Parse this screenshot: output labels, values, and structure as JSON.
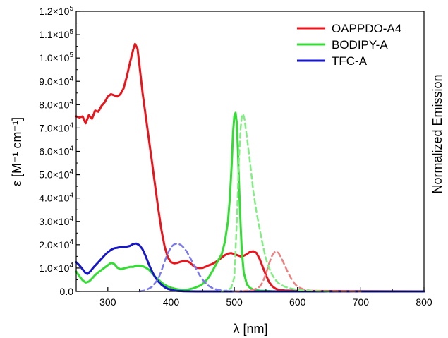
{
  "chart_data": {
    "type": "line",
    "xlabel": "λ [nm]",
    "ylabel": "ε [M⁻¹ cm⁻¹]",
    "y2label": "Normalized Emission",
    "xlim": [
      250,
      800
    ],
    "ylim": [
      0,
      120000
    ],
    "x_ticks": [
      {
        "value": 300,
        "label": "300"
      },
      {
        "value": 400,
        "label": "400"
      },
      {
        "value": 500,
        "label": "500"
      },
      {
        "value": 600,
        "label": "600"
      },
      {
        "value": 700,
        "label": "700"
      },
      {
        "value": 800,
        "label": "800"
      }
    ],
    "y_ticks": [
      {
        "value": 0,
        "mant": "0.0",
        "exp": ""
      },
      {
        "value": 10000,
        "mant": "1.0×10",
        "exp": "4"
      },
      {
        "value": 20000,
        "mant": "2.0×10",
        "exp": "4"
      },
      {
        "value": 30000,
        "mant": "3.0×10",
        "exp": "4"
      },
      {
        "value": 40000,
        "mant": "4.0×10",
        "exp": "4"
      },
      {
        "value": 50000,
        "mant": "5.0×10",
        "exp": "4"
      },
      {
        "value": 60000,
        "mant": "6.0×10",
        "exp": "4"
      },
      {
        "value": 70000,
        "mant": "7.0×10",
        "exp": "4"
      },
      {
        "value": 80000,
        "mant": "8.0×10",
        "exp": "4"
      },
      {
        "value": 90000,
        "mant": "9.0×10",
        "exp": "4"
      },
      {
        "value": 100000,
        "mant": "1.0×10",
        "exp": "5"
      },
      {
        "value": 110000,
        "mant": "1.1×10",
        "exp": "5"
      },
      {
        "value": 120000,
        "mant": "1.2×10",
        "exp": "5"
      }
    ],
    "legend_position": "top-right",
    "series": [
      {
        "name": "OAPPDO-A4",
        "color": "#e8161c",
        "kind": "absorption",
        "points": [
          [
            250,
            75000
          ],
          [
            255,
            74500
          ],
          [
            260,
            75000
          ],
          [
            265,
            72000
          ],
          [
            270,
            75500
          ],
          [
            275,
            74000
          ],
          [
            280,
            77500
          ],
          [
            285,
            77000
          ],
          [
            290,
            79500
          ],
          [
            295,
            81000
          ],
          [
            300,
            83500
          ],
          [
            305,
            84500
          ],
          [
            310,
            84000
          ],
          [
            315,
            83500
          ],
          [
            320,
            84500
          ],
          [
            325,
            87000
          ],
          [
            330,
            92000
          ],
          [
            335,
            98000
          ],
          [
            340,
            103500
          ],
          [
            343,
            106000
          ],
          [
            347,
            104000
          ],
          [
            350,
            97000
          ],
          [
            355,
            85000
          ],
          [
            360,
            75000
          ],
          [
            365,
            65000
          ],
          [
            370,
            55000
          ],
          [
            375,
            45000
          ],
          [
            380,
            35000
          ],
          [
            385,
            26000
          ],
          [
            390,
            19000
          ],
          [
            395,
            14500
          ],
          [
            400,
            12500
          ],
          [
            405,
            12000
          ],
          [
            410,
            12200
          ],
          [
            415,
            12700
          ],
          [
            420,
            13000
          ],
          [
            425,
            13000
          ],
          [
            430,
            12300
          ],
          [
            435,
            11000
          ],
          [
            440,
            10200
          ],
          [
            445,
            10000
          ],
          [
            450,
            10100
          ],
          [
            455,
            10600
          ],
          [
            460,
            11200
          ],
          [
            465,
            11700
          ],
          [
            470,
            12500
          ],
          [
            475,
            13400
          ],
          [
            480,
            14500
          ],
          [
            485,
            15500
          ],
          [
            490,
            16200
          ],
          [
            495,
            16400
          ],
          [
            500,
            16000
          ],
          [
            505,
            15500
          ],
          [
            510,
            15000
          ],
          [
            515,
            15300
          ],
          [
            520,
            16000
          ],
          [
            525,
            17000
          ],
          [
            530,
            17200
          ],
          [
            535,
            16500
          ],
          [
            540,
            14000
          ],
          [
            545,
            10500
          ],
          [
            550,
            7000
          ],
          [
            555,
            4000
          ],
          [
            560,
            2200
          ],
          [
            565,
            1200
          ],
          [
            570,
            700
          ],
          [
            580,
            400
          ],
          [
            600,
            200
          ],
          [
            700,
            100
          ],
          [
            800,
            0
          ]
        ]
      },
      {
        "name": "BODIPY-A",
        "color": "#33dd33",
        "kind": "absorption",
        "points": [
          [
            250,
            8500
          ],
          [
            255,
            6500
          ],
          [
            260,
            4800
          ],
          [
            265,
            3800
          ],
          [
            270,
            4200
          ],
          [
            275,
            5500
          ],
          [
            280,
            7000
          ],
          [
            285,
            8200
          ],
          [
            290,
            9200
          ],
          [
            295,
            10200
          ],
          [
            300,
            11200
          ],
          [
            305,
            12200
          ],
          [
            310,
            11800
          ],
          [
            315,
            10200
          ],
          [
            320,
            9500
          ],
          [
            325,
            9800
          ],
          [
            330,
            10200
          ],
          [
            335,
            10500
          ],
          [
            340,
            10500
          ],
          [
            345,
            11000
          ],
          [
            350,
            11000
          ],
          [
            355,
            10800
          ],
          [
            360,
            10200
          ],
          [
            365,
            9300
          ],
          [
            370,
            7800
          ],
          [
            375,
            6300
          ],
          [
            380,
            5000
          ],
          [
            385,
            3800
          ],
          [
            390,
            2800
          ],
          [
            395,
            2100
          ],
          [
            400,
            1600
          ],
          [
            405,
            1200
          ],
          [
            410,
            900
          ],
          [
            415,
            700
          ],
          [
            420,
            600
          ],
          [
            425,
            700
          ],
          [
            430,
            1000
          ],
          [
            435,
            1300
          ],
          [
            440,
            1800
          ],
          [
            445,
            2400
          ],
          [
            450,
            3200
          ],
          [
            455,
            4500
          ],
          [
            460,
            6200
          ],
          [
            465,
            8500
          ],
          [
            470,
            11000
          ],
          [
            475,
            13500
          ],
          [
            480,
            16000
          ],
          [
            485,
            21000
          ],
          [
            490,
            30000
          ],
          [
            493,
            40000
          ],
          [
            496,
            55000
          ],
          [
            498,
            68000
          ],
          [
            500,
            75000
          ],
          [
            502,
            76500
          ],
          [
            504,
            72000
          ],
          [
            506,
            58000
          ],
          [
            508,
            42000
          ],
          [
            510,
            28000
          ],
          [
            512,
            17000
          ],
          [
            515,
            8000
          ],
          [
            520,
            3000
          ],
          [
            525,
            1500
          ],
          [
            530,
            800
          ],
          [
            540,
            300
          ],
          [
            560,
            100
          ],
          [
            600,
            0
          ],
          [
            800,
            0
          ]
        ]
      },
      {
        "name": "TFC-A",
        "color": "#1717c8",
        "kind": "absorption",
        "points": [
          [
            250,
            12500
          ],
          [
            255,
            11200
          ],
          [
            260,
            9500
          ],
          [
            265,
            7800
          ],
          [
            268,
            7500
          ],
          [
            272,
            8500
          ],
          [
            278,
            10500
          ],
          [
            285,
            12500
          ],
          [
            290,
            14000
          ],
          [
            295,
            15500
          ],
          [
            300,
            16800
          ],
          [
            305,
            17800
          ],
          [
            310,
            18500
          ],
          [
            315,
            18700
          ],
          [
            320,
            19000
          ],
          [
            325,
            19000
          ],
          [
            330,
            19200
          ],
          [
            335,
            19500
          ],
          [
            340,
            20300
          ],
          [
            345,
            20500
          ],
          [
            350,
            19800
          ],
          [
            355,
            18000
          ],
          [
            360,
            15000
          ],
          [
            365,
            11500
          ],
          [
            370,
            8500
          ],
          [
            375,
            6000
          ],
          [
            380,
            4200
          ],
          [
            385,
            2800
          ],
          [
            390,
            1800
          ],
          [
            395,
            1100
          ],
          [
            400,
            700
          ],
          [
            405,
            400
          ],
          [
            410,
            200
          ],
          [
            420,
            100
          ],
          [
            440,
            0
          ],
          [
            800,
            0
          ]
        ]
      },
      {
        "name": "",
        "color": "#ee8080",
        "kind": "emission",
        "dashed": true,
        "points": [
          [
            500,
            0
          ],
          [
            510,
            100
          ],
          [
            520,
            300
          ],
          [
            530,
            700
          ],
          [
            535,
            1200
          ],
          [
            540,
            2000
          ],
          [
            545,
            4000
          ],
          [
            550,
            7500
          ],
          [
            555,
            12000
          ],
          [
            560,
            15500
          ],
          [
            565,
            17200
          ],
          [
            570,
            16500
          ],
          [
            575,
            14000
          ],
          [
            580,
            11000
          ],
          [
            585,
            8000
          ],
          [
            590,
            5500
          ],
          [
            595,
            3500
          ],
          [
            600,
            2000
          ],
          [
            610,
            800
          ],
          [
            620,
            300
          ],
          [
            640,
            100
          ],
          [
            700,
            0
          ]
        ]
      },
      {
        "name": "",
        "color": "#80ee80",
        "kind": "emission",
        "dashed": true,
        "points": [
          [
            480,
            0
          ],
          [
            490,
            500
          ],
          [
            495,
            1500
          ],
          [
            500,
            6000
          ],
          [
            504,
            30000
          ],
          [
            507,
            55000
          ],
          [
            510,
            70000
          ],
          [
            512,
            75000
          ],
          [
            514,
            76000
          ],
          [
            516,
            74000
          ],
          [
            520,
            66000
          ],
          [
            525,
            55000
          ],
          [
            530,
            43000
          ],
          [
            535,
            34000
          ],
          [
            540,
            27000
          ],
          [
            545,
            20000
          ],
          [
            550,
            14000
          ],
          [
            555,
            10000
          ],
          [
            560,
            7000
          ],
          [
            565,
            5000
          ],
          [
            570,
            3500
          ],
          [
            580,
            2000
          ],
          [
            590,
            1200
          ],
          [
            600,
            700
          ],
          [
            620,
            200
          ],
          [
            650,
            0
          ]
        ]
      },
      {
        "name": "",
        "color": "#7a7aee",
        "kind": "emission",
        "dashed": true,
        "points": [
          [
            350,
            0
          ],
          [
            360,
            500
          ],
          [
            370,
            2000
          ],
          [
            380,
            5500
          ],
          [
            385,
            9000
          ],
          [
            390,
            13000
          ],
          [
            395,
            16500
          ],
          [
            400,
            19000
          ],
          [
            405,
            20200
          ],
          [
            410,
            20500
          ],
          [
            415,
            20000
          ],
          [
            420,
            18800
          ],
          [
            425,
            17000
          ],
          [
            430,
            14500
          ],
          [
            435,
            12000
          ],
          [
            440,
            9500
          ],
          [
            445,
            7000
          ],
          [
            450,
            5000
          ],
          [
            455,
            3500
          ],
          [
            460,
            2300
          ],
          [
            465,
            1500
          ],
          [
            470,
            1000
          ],
          [
            480,
            400
          ],
          [
            500,
            0
          ]
        ]
      }
    ]
  }
}
